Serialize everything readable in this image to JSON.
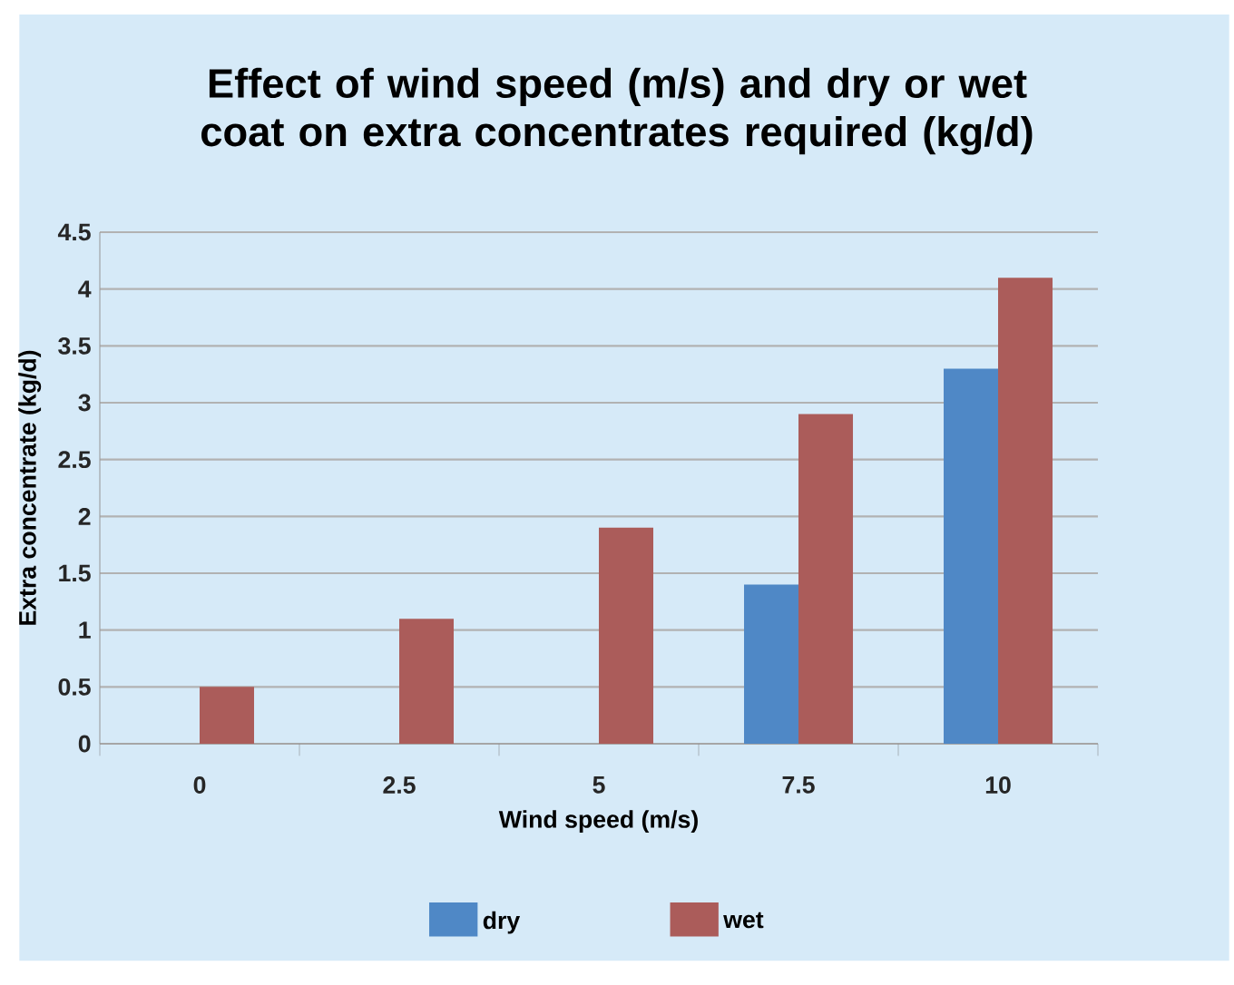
{
  "chart_data": {
    "type": "bar",
    "title": "Effect of wind speed (m/s) and dry or wet coat on extra concentrates required (kg/d)",
    "xlabel": "Wind speed (m/s)",
    "ylabel": "Extra concentrate (kg/d)",
    "categories": [
      "0",
      "2.5",
      "5",
      "7.5",
      "10"
    ],
    "series": [
      {
        "name": "dry",
        "color": "#4f88c6",
        "values": [
          null,
          null,
          null,
          1.4,
          3.3
        ]
      },
      {
        "name": "wet",
        "color": "#ab5c5a",
        "values": [
          0.5,
          1.1,
          1.9,
          2.9,
          4.1
        ]
      }
    ],
    "ylim": [
      0,
      4.5
    ],
    "yticks": [
      0,
      0.5,
      1,
      1.5,
      2,
      2.5,
      3,
      3.5,
      4,
      4.5
    ],
    "grid": "y",
    "legend": "bottom"
  }
}
